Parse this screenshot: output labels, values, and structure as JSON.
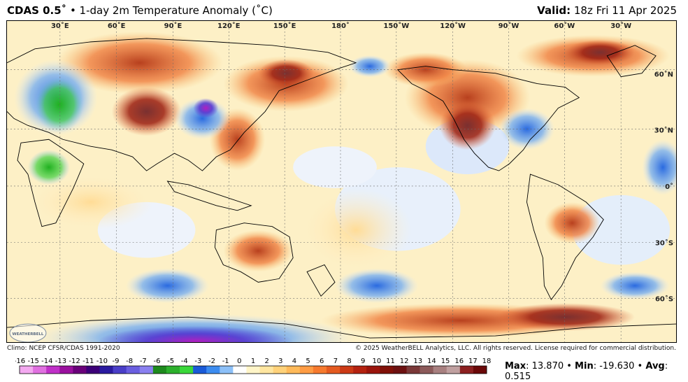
{
  "header": {
    "model": "CDAS 0.5˚",
    "product": " • 1-day 2m Temperature Anomaly (˚C)",
    "valid_label": "Valid:",
    "valid_time": " 18z Fri 11 Apr 2025"
  },
  "map": {
    "lon_labels": [
      "30˚E",
      "60˚E",
      "90˚E",
      "120˚E",
      "150˚E",
      "180˚",
      "150˚W",
      "120˚W",
      "90˚W",
      "60˚W",
      "30˚W"
    ],
    "lat_labels": [
      "60˚N",
      "30˚N",
      "0˚",
      "30˚S",
      "60˚S"
    ],
    "logo_text": "WEATHERBELL"
  },
  "footer": {
    "climo": "Climo: NCEP CFSR/CDAS 1991-2020",
    "copyright": "© 2025 WeatherBELL Analytics, LLC. All rights reserved. License required for commercial distribution."
  },
  "colorbar": {
    "ticks": [
      "-16",
      "-15",
      "-14",
      "-13",
      "-12",
      "-11",
      "-10",
      "-9",
      "-8",
      "-7",
      "-6",
      "-5",
      "-4",
      "-3",
      "-2",
      "-1",
      "0",
      "1",
      "2",
      "3",
      "4",
      "5",
      "6",
      "7",
      "8",
      "9",
      "10",
      "11",
      "12",
      "13",
      "14",
      "15",
      "16",
      "17",
      "18"
    ],
    "colors": [
      "#f3a9f0",
      "#e070e0",
      "#c030c8",
      "#9a109e",
      "#6a007a",
      "#3c0078",
      "#2a1aa0",
      "#4a3ec8",
      "#6a5ee0",
      "#8a80f0",
      "#1e8a1e",
      "#2cb02c",
      "#3ad83a",
      "#1a5ad8",
      "#3c8cf0",
      "#8cc0f8",
      "#ffffff",
      "#fff5c8",
      "#ffe6a0",
      "#ffd27a",
      "#ffba5a",
      "#ff9c44",
      "#f67a2e",
      "#e45a20",
      "#cc3a16",
      "#b42210",
      "#9a140c",
      "#801008",
      "#6c1010",
      "#7a3838",
      "#8c5a5a",
      "#a88080",
      "#c0a0a0",
      "#8c2020",
      "#6a0808"
    ]
  },
  "stats": {
    "max_label": "Max",
    "max_value": ": 13.870",
    "min_label": "Min",
    "min_value": ": -19.630",
    "avg_label": "Avg",
    "avg_value": ": 0.515",
    "sep": " • "
  }
}
